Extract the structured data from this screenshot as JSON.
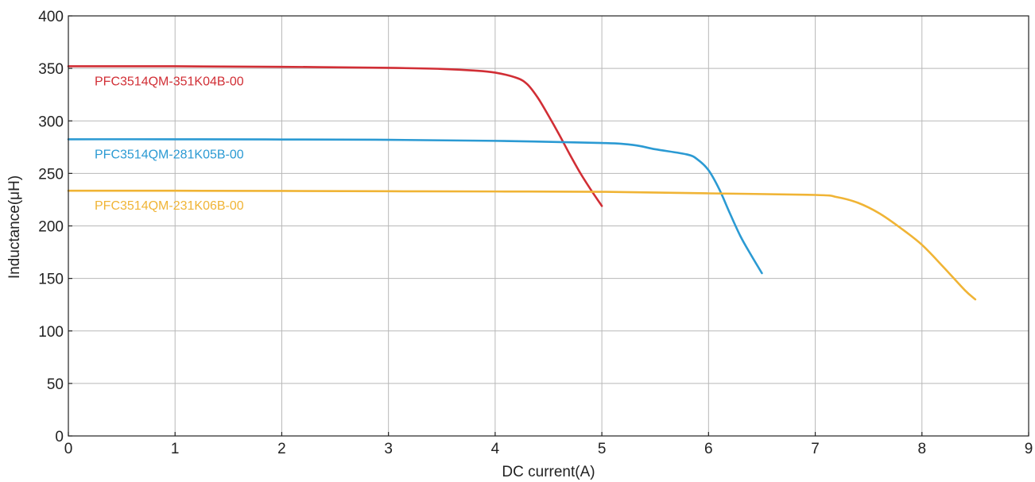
{
  "chart_data": {
    "type": "line",
    "title": "",
    "xlabel": "DC current(A)",
    "ylabel": "Inductance(μH)",
    "xlim": [
      0,
      9
    ],
    "ylim": [
      0,
      400
    ],
    "xticks": [
      0,
      1,
      2,
      3,
      4,
      5,
      6,
      7,
      8,
      9
    ],
    "yticks": [
      0,
      50,
      100,
      150,
      200,
      250,
      300,
      350,
      400
    ],
    "grid": true,
    "legend": "inline labels",
    "series": [
      {
        "name": "PFC3514QM-351K04B-00",
        "color": "#d12e35",
        "x": [
          0,
          1,
          2,
          3,
          3.5,
          3.8,
          4.0,
          4.2,
          4.3,
          4.4,
          4.5,
          4.6,
          4.7,
          4.8,
          4.9,
          5.0
        ],
        "y": [
          352,
          352,
          351.5,
          350.5,
          349.5,
          348,
          346,
          341,
          335,
          322,
          305,
          287,
          268,
          250,
          234,
          219
        ]
      },
      {
        "name": "PFC3514QM-281K05B-00",
        "color": "#2b9ad3",
        "x": [
          0,
          1,
          2,
          3,
          4,
          5,
          5.3,
          5.5,
          5.8,
          5.9,
          6.0,
          6.1,
          6.2,
          6.3,
          6.4,
          6.5
        ],
        "y": [
          282.5,
          282.5,
          282.3,
          282,
          281,
          279,
          277,
          273,
          268,
          263,
          253,
          235,
          212,
          190,
          172,
          155
        ]
      },
      {
        "name": "PFC3514QM-231K06B-00",
        "color": "#f0b435",
        "x": [
          0,
          1,
          2,
          3,
          4,
          5,
          6,
          7,
          7.2,
          7.4,
          7.6,
          7.8,
          8.0,
          8.2,
          8.4,
          8.5
        ],
        "y": [
          233.5,
          233.5,
          233.3,
          233,
          232.8,
          232.5,
          231,
          229.5,
          227.5,
          222,
          212,
          198,
          182,
          161,
          139,
          130
        ]
      }
    ]
  }
}
